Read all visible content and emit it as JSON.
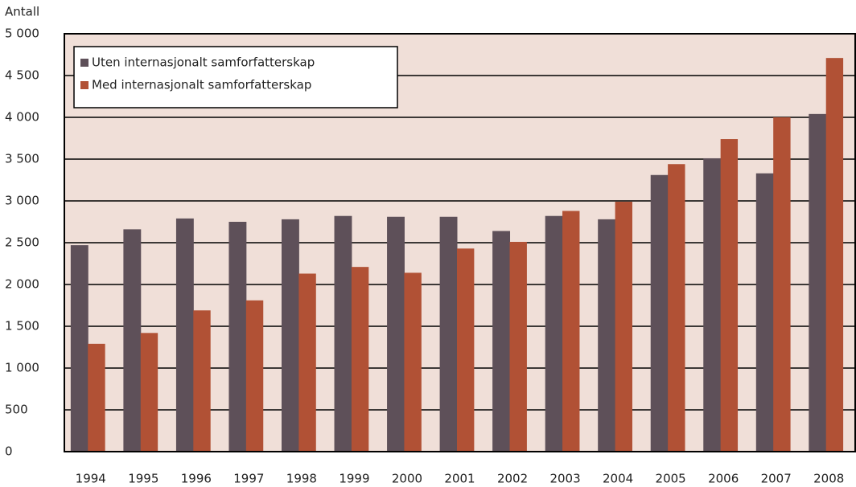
{
  "chart_data": {
    "type": "bar",
    "y_label": "Antall",
    "categories": [
      "1994",
      "1995",
      "1996",
      "1997",
      "1998",
      "1999",
      "2000",
      "2001",
      "2002",
      "2003",
      "2004",
      "2005",
      "2006",
      "2007",
      "2008"
    ],
    "series": [
      {
        "name": "Uten internasjonalt samforfatterskap",
        "color": "#5e5059",
        "values": [
          2470,
          2660,
          2790,
          2750,
          2780,
          2820,
          2810,
          2810,
          2640,
          2820,
          2780,
          3310,
          3510,
          3330,
          4040
        ]
      },
      {
        "name": "Med internasjonalt samforfatterskap",
        "color": "#b15135",
        "values": [
          1290,
          1420,
          1690,
          1810,
          2130,
          2210,
          2140,
          2430,
          2510,
          2880,
          2990,
          3440,
          3740,
          4000,
          4710
        ]
      }
    ],
    "ylim": [
      0,
      5000
    ],
    "yticks": [
      0,
      500,
      {
        "value": 1000,
        "label": "1 000"
      },
      {
        "value": 1500,
        "label": "1 500"
      },
      {
        "value": 2000,
        "label": "2 000"
      },
      {
        "value": 2500,
        "label": "2 500"
      },
      {
        "value": 3000,
        "label": "3 000"
      },
      {
        "value": 3500,
        "label": "3 500"
      },
      {
        "value": 4000,
        "label": "4 000"
      },
      {
        "value": 4500,
        "label": "4 500"
      },
      {
        "value": 5000,
        "label": "5 000"
      }
    ],
    "grid": true,
    "legend": "upper left",
    "plot_background": "#f0dfd8"
  }
}
